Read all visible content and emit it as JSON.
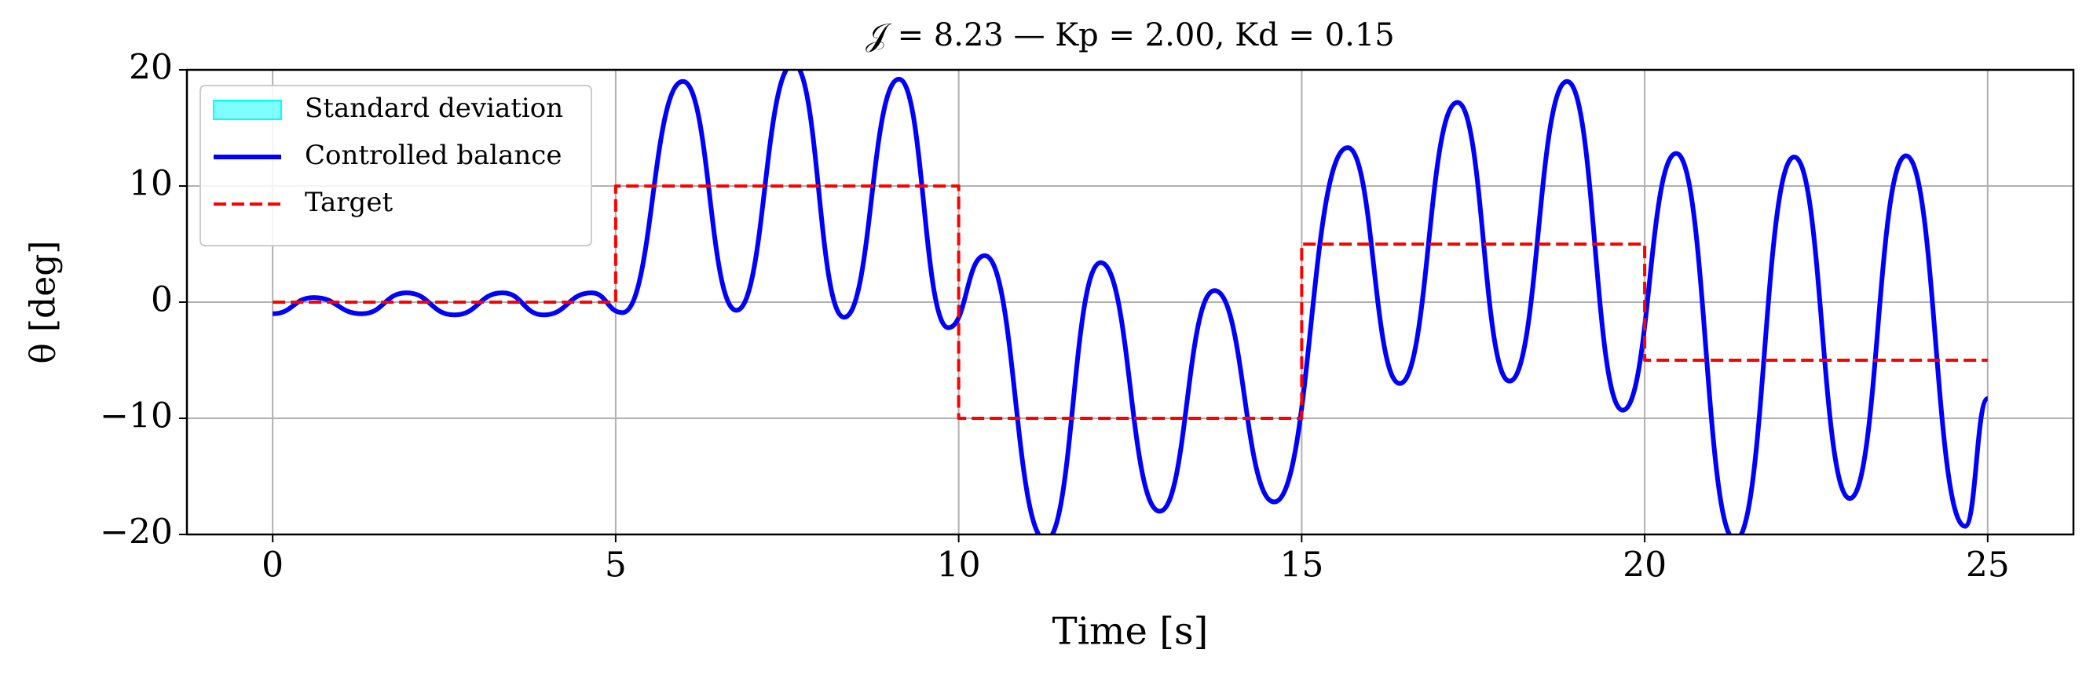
{
  "chart_data": {
    "type": "line",
    "title": "𝒥 = 8.23 — Kp = 2.00, Kd = 0.15",
    "xlabel": "Time [s]",
    "ylabel": "θ [deg]",
    "xlim": [
      -1.25,
      26.25
    ],
    "ylim": [
      -20,
      20
    ],
    "xticks": [
      0,
      5,
      10,
      15,
      20,
      25
    ],
    "yticks": [
      {
        "value": -20,
        "label": "−20"
      },
      {
        "value": -10,
        "label": "−10"
      },
      0,
      10,
      20
    ],
    "grid": true,
    "legend": "upper left",
    "band": {
      "name": "Standard deviation",
      "color": "#00ffff"
    },
    "series": [
      {
        "name": "Controlled balance",
        "color": "#0000ff",
        "linestyle": "solid",
        "x": [
          0,
          0.6,
          1.3,
          1.95,
          2.65,
          3.35,
          3.95,
          4.65,
          5.1,
          5.98,
          6.76,
          7.59,
          8.33,
          9.13,
          9.85,
          10.38,
          11.27,
          12.07,
          12.93,
          13.73,
          14.6,
          15.67,
          16.43,
          17.27,
          18.03,
          18.87,
          19.68,
          20.46,
          21.32,
          22.18,
          22.99,
          23.81,
          24.67,
          25
        ],
        "values": [
          -1,
          0.4,
          -1.0,
          0.8,
          -1.1,
          0.8,
          -1.1,
          0.8,
          -0.9,
          19,
          -0.7,
          20.5,
          -1.3,
          19.2,
          -2.2,
          4.0,
          -20.5,
          3.4,
          -18.0,
          1.0,
          -17.2,
          13.3,
          -7.0,
          17.2,
          -6.8,
          19.0,
          -9.3,
          12.8,
          -20.5,
          12.5,
          -16.9,
          12.6,
          -19.3,
          -8.3
        ]
      },
      {
        "name": "Target",
        "color": "#ff0000",
        "linestyle": "dashed",
        "x": [
          0,
          5,
          5,
          10,
          10,
          15,
          15,
          20,
          20,
          25
        ],
        "values": [
          0,
          0,
          10,
          10,
          -10,
          -10,
          5,
          5,
          -5,
          -5
        ]
      }
    ]
  }
}
